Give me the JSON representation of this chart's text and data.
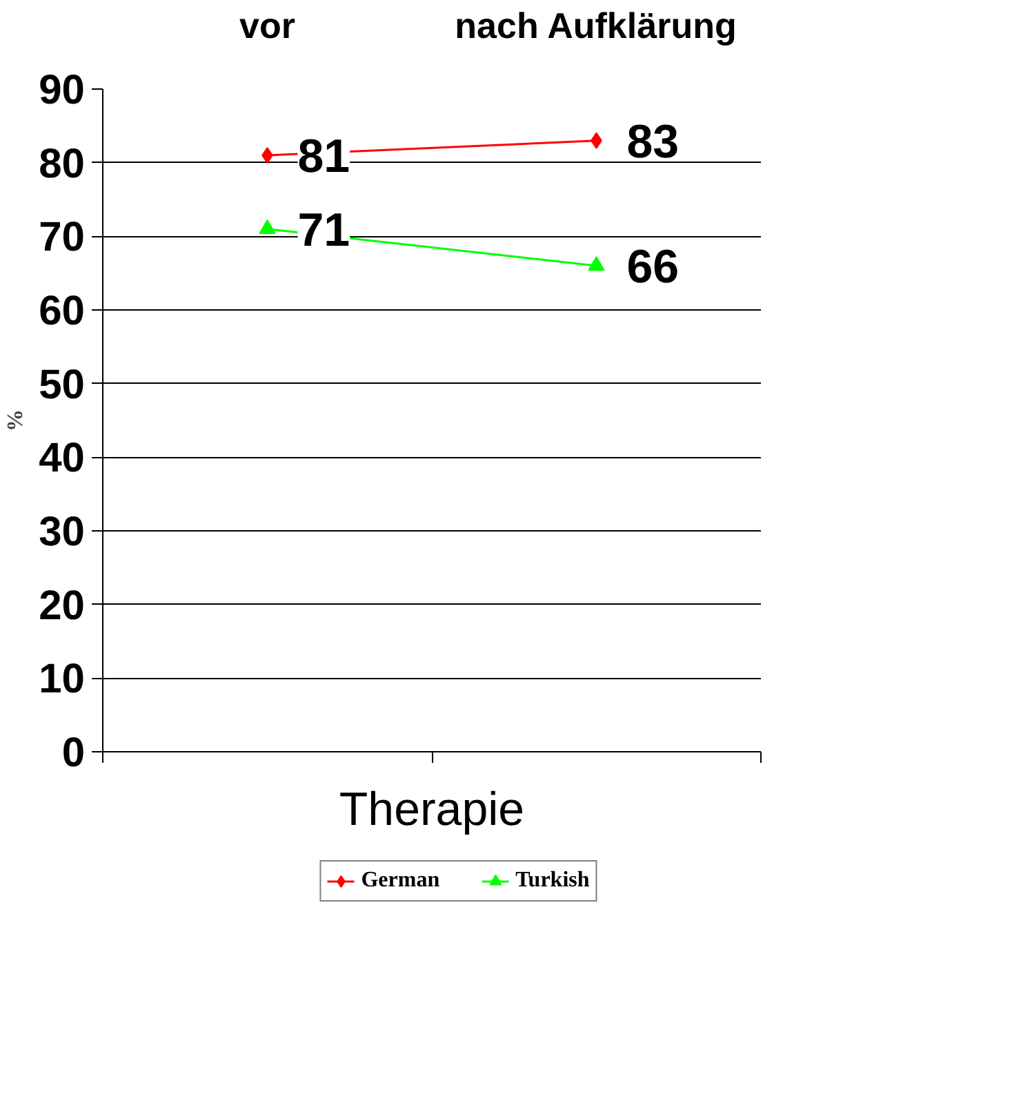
{
  "chart_data": {
    "type": "line",
    "categories": [
      "vor",
      "nach Aufklärung"
    ],
    "xlabel": "Therapie",
    "ylabel": "%",
    "ylim": [
      0,
      90
    ],
    "yticks": [
      0,
      10,
      20,
      30,
      40,
      50,
      60,
      70,
      80,
      90
    ],
    "grid": "y",
    "legend": "bottom",
    "data_labels": true,
    "series": [
      {
        "name": "German",
        "color": "#ff0000",
        "marker": "diamond",
        "values": [
          81,
          83
        ]
      },
      {
        "name": "Turkish",
        "color": "#00ff00",
        "marker": "triangle",
        "values": [
          71,
          66
        ]
      }
    ]
  }
}
